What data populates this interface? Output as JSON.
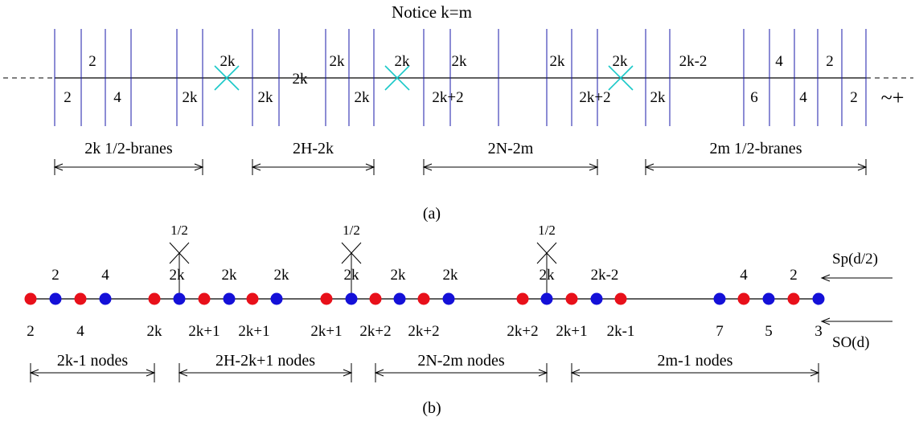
{
  "title": "Notice  k=m",
  "panel_a": {
    "caption": "(a)",
    "d5_labels": [
      {
        "label": "2",
        "pos": "below"
      },
      {
        "label": "2",
        "pos": "above"
      },
      {
        "label": "4",
        "pos": "below"
      },
      {
        "label": "2k",
        "pos": "below"
      },
      {
        "label": "2k",
        "pos": "above"
      },
      {
        "label": "2k",
        "pos": "below"
      },
      {
        "label": "2k",
        "pos": "on"
      },
      {
        "label": "2k",
        "pos": "above"
      },
      {
        "label": "2k",
        "pos": "below"
      },
      {
        "label": "2k",
        "pos": "above"
      },
      {
        "label": "2k",
        "pos": "above"
      },
      {
        "label": "2k+2",
        "pos": "below"
      },
      {
        "label": "2k",
        "pos": "above"
      },
      {
        "label": "2k+2",
        "pos": "below"
      },
      {
        "label": "2k",
        "pos": "above"
      },
      {
        "label": "2k",
        "pos": "below"
      },
      {
        "label": "2k-2",
        "pos": "above"
      },
      {
        "label": "6",
        "pos": "below"
      },
      {
        "label": "4",
        "pos": "above"
      },
      {
        "label": "4",
        "pos": "below"
      },
      {
        "label": "2",
        "pos": "above"
      },
      {
        "label": "2",
        "pos": "below"
      }
    ],
    "plane_symbol": "~+",
    "ranges": [
      "2k  1/2-branes",
      "2H-2k",
      "2N-2m",
      "2m  1/2-branes"
    ]
  },
  "panel_b": {
    "caption": "(b)",
    "upper_labels": [
      "2",
      "4",
      "2k",
      "2k",
      "2k",
      "2k",
      "2k",
      "2k",
      "2k",
      "2k-2",
      "4",
      "2"
    ],
    "lower_labels": [
      "2",
      "4",
      "2k",
      "2k+1",
      "2k+1",
      "2k+1",
      "2k+2",
      "2k+2",
      "2k+2",
      "2k+1",
      "2k-1",
      "7",
      "5",
      "3"
    ],
    "half_markers": [
      "1/2",
      "1/2",
      "1/2"
    ],
    "arrow_labels": {
      "upper": "Sp(d/2)",
      "lower": "SO(d)"
    },
    "ranges": [
      "2k-1  nodes",
      "2H-2k+1 nodes",
      "2N-2m nodes",
      "2m-1  nodes"
    ],
    "node_colors": [
      "red",
      "blue",
      "red",
      "blue",
      "red",
      "blue",
      "red",
      "blue",
      "red",
      "blue",
      "red",
      "blue",
      "red",
      "blue",
      "red",
      "blue",
      "red",
      "blue",
      "red",
      "blue",
      "red",
      "blue",
      "red",
      "blue",
      "red",
      "blue"
    ],
    "colors": {
      "red": "#e8101a",
      "blue": "#1410d8"
    }
  },
  "colors": {
    "brane": "#1a1aa8",
    "cross": "#19c8c8",
    "line": "#000000"
  }
}
